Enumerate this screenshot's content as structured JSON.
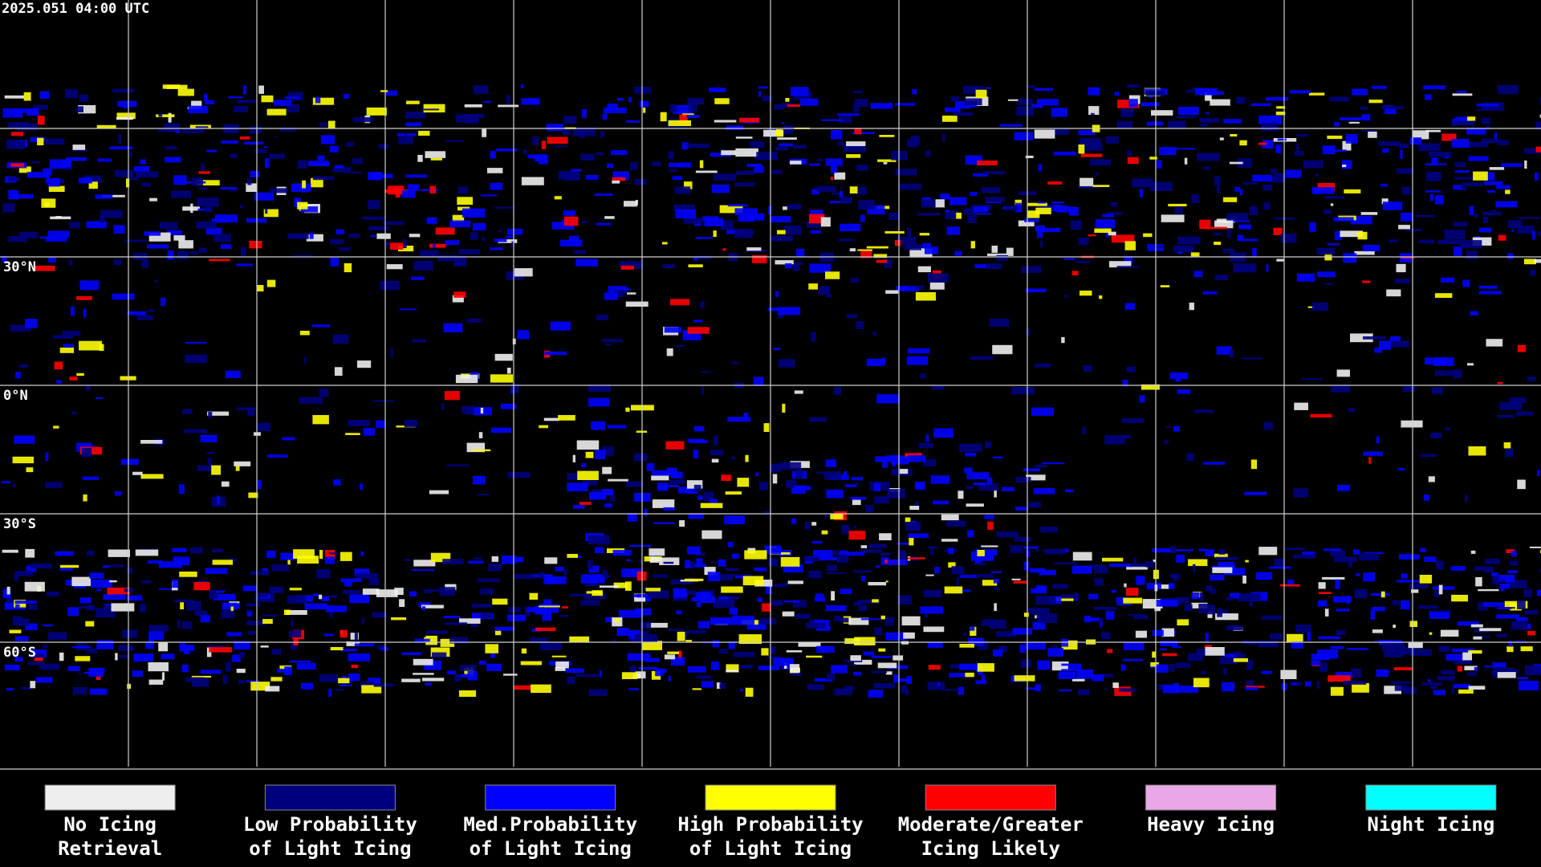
{
  "header": {
    "timestamp": "2025.051 04:00 UTC"
  },
  "map": {
    "latitude_labels": [
      "30°N",
      "0°N",
      "30°S",
      "60°S"
    ]
  },
  "legend": [
    {
      "lines": [
        "No Icing",
        "Retrieval"
      ],
      "color": "#eeeeee"
    },
    {
      "lines": [
        "Low Probability",
        "of Light Icing"
      ],
      "color": "#00007f"
    },
    {
      "lines": [
        "Med.Probability",
        "of Light Icing"
      ],
      "color": "#0000ff"
    },
    {
      "lines": [
        "High Probability",
        "of Light Icing"
      ],
      "color": "#ffff00"
    },
    {
      "lines": [
        "Moderate/Greater",
        "Icing Likely"
      ],
      "color": "#ff0000"
    },
    {
      "lines": [
        "Heavy Icing"
      ],
      "color": "#e8a8e8"
    },
    {
      "lines": [
        "Night Icing"
      ],
      "color": "#00ffff"
    }
  ]
}
